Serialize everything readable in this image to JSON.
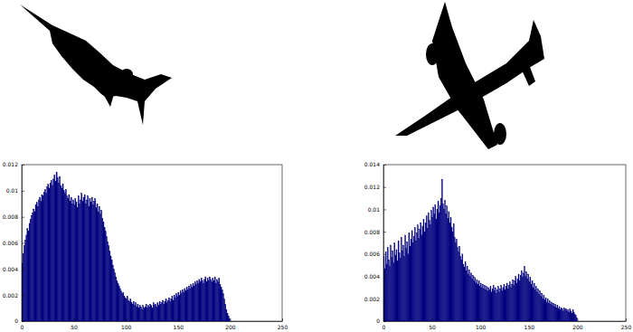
{
  "chart_data": [
    {
      "type": "histogram",
      "color": "#00007f",
      "bins": [
        0,
        1,
        2,
        3,
        4,
        5,
        6,
        7,
        8,
        9,
        10,
        11,
        12,
        13,
        14,
        15,
        16,
        17,
        18,
        19,
        20,
        21,
        22,
        23,
        24,
        25,
        26,
        27,
        28,
        29,
        30,
        31,
        32,
        33,
        34,
        35,
        36,
        37,
        38,
        39,
        40,
        41,
        42,
        43,
        44,
        45,
        46,
        47,
        48,
        49,
        50,
        51,
        52,
        53,
        54,
        55,
        56,
        57,
        58,
        59,
        60,
        61,
        62,
        63,
        64,
        65,
        66,
        67,
        68,
        69,
        70,
        71,
        72,
        73,
        74,
        75,
        76,
        77,
        78,
        79,
        80,
        81,
        82,
        83,
        84,
        85,
        86,
        87,
        88,
        89,
        90,
        91,
        92,
        93,
        94,
        95,
        96,
        97,
        98,
        99,
        100,
        101,
        102,
        103,
        104,
        105,
        106,
        107,
        108,
        109,
        110,
        111,
        112,
        113,
        114,
        115,
        116,
        117,
        118,
        119,
        120,
        121,
        122,
        123,
        124,
        125,
        126,
        127,
        128,
        129,
        130,
        131,
        132,
        133,
        134,
        135,
        136,
        137,
        138,
        139,
        140,
        141,
        142,
        143,
        144,
        145,
        146,
        147,
        148,
        149,
        150,
        151,
        152,
        153,
        154,
        155,
        156,
        157,
        158,
        159,
        160,
        161,
        162,
        163,
        164,
        165,
        166,
        167,
        168,
        169,
        170,
        171,
        172,
        173,
        174,
        175,
        176,
        177,
        178,
        179,
        180,
        181,
        182,
        183,
        184,
        185,
        186,
        187,
        188,
        189,
        190,
        191,
        192,
        193,
        194,
        195,
        196,
        197,
        198,
        199,
        200
      ],
      "values": [
        0.0044,
        0.0052,
        0.0058,
        0.0062,
        0.0066,
        0.0071,
        0.0069,
        0.0075,
        0.0078,
        0.0081,
        0.0083,
        0.0086,
        0.0084,
        0.0089,
        0.0091,
        0.0088,
        0.0093,
        0.0095,
        0.0092,
        0.0097,
        0.0096,
        0.0099,
        0.0101,
        0.0098,
        0.0103,
        0.0105,
        0.0102,
        0.0106,
        0.0108,
        0.0104,
        0.0109,
        0.0112,
        0.0107,
        0.0114,
        0.011,
        0.0106,
        0.0111,
        0.0104,
        0.0102,
        0.0105,
        0.01,
        0.0098,
        0.0101,
        0.0096,
        0.0094,
        0.0097,
        0.0092,
        0.0095,
        0.009,
        0.0093,
        0.0089,
        0.0094,
        0.0091,
        0.0087,
        0.0096,
        0.009,
        0.0093,
        0.0098,
        0.0092,
        0.0095,
        0.0097,
        0.009,
        0.0093,
        0.0096,
        0.0088,
        0.0094,
        0.0091,
        0.0095,
        0.0089,
        0.0092,
        0.0094,
        0.0087,
        0.009,
        0.0084,
        0.0088,
        0.0082,
        0.0085,
        0.0079,
        0.0076,
        0.0072,
        0.0069,
        0.0065,
        0.0061,
        0.0058,
        0.0054,
        0.005,
        0.0047,
        0.0043,
        0.004,
        0.0037,
        0.0034,
        0.0031,
        0.0029,
        0.0027,
        0.0025,
        0.0023,
        0.0021,
        0.0022,
        0.0019,
        0.0018,
        0.0017,
        0.0019,
        0.0016,
        0.0015,
        0.0017,
        0.0014,
        0.0013,
        0.0015,
        0.0012,
        0.0014,
        0.0011,
        0.0013,
        0.001,
        0.0012,
        0.0011,
        0.0009,
        0.0012,
        0.001,
        0.0011,
        0.0013,
        0.001,
        0.0012,
        0.0011,
        0.0013,
        0.0012,
        0.001,
        0.0014,
        0.0012,
        0.0013,
        0.0011,
        0.0014,
        0.0012,
        0.0015,
        0.0013,
        0.0014,
        0.0016,
        0.0013,
        0.0015,
        0.0017,
        0.0014,
        0.0016,
        0.0018,
        0.0015,
        0.0017,
        0.0019,
        0.0016,
        0.002,
        0.0018,
        0.0021,
        0.0019,
        0.0022,
        0.002,
        0.0023,
        0.0021,
        0.0024,
        0.0022,
        0.0025,
        0.0023,
        0.0026,
        0.0024,
        0.0027,
        0.0025,
        0.0028,
        0.0026,
        0.0029,
        0.0027,
        0.003,
        0.0028,
        0.0031,
        0.0029,
        0.0032,
        0.003,
        0.0033,
        0.0031,
        0.0029,
        0.0032,
        0.0034,
        0.003,
        0.0033,
        0.0031,
        0.0034,
        0.0032,
        0.003,
        0.0033,
        0.0031,
        0.0034,
        0.0029,
        0.0032,
        0.003,
        0.0033,
        0.0028,
        0.0026,
        0.0024,
        0.0021,
        0.0017,
        0.0013,
        0.0009,
        0.0006,
        0.0004,
        0.0002
      ],
      "xlim": [
        0,
        250
      ],
      "xticks": [
        0,
        50,
        100,
        150,
        200,
        250
      ],
      "ylim": [
        0,
        0.012
      ],
      "yticks": [
        0,
        0.002,
        0.004,
        0.006,
        0.008,
        0.01,
        0.012
      ]
    },
    {
      "type": "histogram",
      "color": "#00007f",
      "bins": [
        0,
        1,
        2,
        3,
        4,
        5,
        6,
        7,
        8,
        9,
        10,
        11,
        12,
        13,
        14,
        15,
        16,
        17,
        18,
        19,
        20,
        21,
        22,
        23,
        24,
        25,
        26,
        27,
        28,
        29,
        30,
        31,
        32,
        33,
        34,
        35,
        36,
        37,
        38,
        39,
        40,
        41,
        42,
        43,
        44,
        45,
        46,
        47,
        48,
        49,
        50,
        51,
        52,
        53,
        54,
        55,
        56,
        57,
        58,
        59,
        60,
        61,
        62,
        63,
        64,
        65,
        66,
        67,
        68,
        69,
        70,
        71,
        72,
        73,
        74,
        75,
        76,
        77,
        78,
        79,
        80,
        81,
        82,
        83,
        84,
        85,
        86,
        87,
        88,
        89,
        90,
        91,
        92,
        93,
        94,
        95,
        96,
        97,
        98,
        99,
        100,
        101,
        102,
        103,
        104,
        105,
        106,
        107,
        108,
        109,
        110,
        111,
        112,
        113,
        114,
        115,
        116,
        117,
        118,
        119,
        120,
        121,
        122,
        123,
        124,
        125,
        126,
        127,
        128,
        129,
        130,
        131,
        132,
        133,
        134,
        135,
        136,
        137,
        138,
        139,
        140,
        141,
        142,
        143,
        144,
        145,
        146,
        147,
        148,
        149,
        150,
        151,
        152,
        153,
        154,
        155,
        156,
        157,
        158,
        159,
        160,
        161,
        162,
        163,
        164,
        165,
        166,
        167,
        168,
        169,
        170,
        171,
        172,
        173,
        174,
        175,
        176,
        177,
        178,
        179,
        180,
        181,
        182,
        183,
        184,
        185,
        186,
        187,
        188,
        189,
        190,
        191,
        192,
        193,
        194,
        195,
        196,
        197,
        198,
        199,
        200
      ],
      "values": [
        0.0058,
        0.0047,
        0.0062,
        0.0051,
        0.0066,
        0.0055,
        0.0049,
        0.0068,
        0.0057,
        0.0063,
        0.0052,
        0.007,
        0.0059,
        0.0064,
        0.0054,
        0.0072,
        0.0061,
        0.0056,
        0.0075,
        0.0063,
        0.0068,
        0.0058,
        0.0077,
        0.0065,
        0.0071,
        0.006,
        0.0079,
        0.0067,
        0.0073,
        0.0081,
        0.007,
        0.0076,
        0.0084,
        0.0072,
        0.0079,
        0.0086,
        0.0074,
        0.0082,
        0.0088,
        0.0077,
        0.0085,
        0.0091,
        0.008,
        0.0088,
        0.0094,
        0.0083,
        0.0097,
        0.009,
        0.0086,
        0.0099,
        0.0093,
        0.0102,
        0.0096,
        0.0104,
        0.0091,
        0.01,
        0.0107,
        0.0097,
        0.0103,
        0.011,
        0.0127,
        0.0105,
        0.01,
        0.0108,
        0.0096,
        0.0103,
        0.0092,
        0.0098,
        0.0088,
        0.0093,
        0.0084,
        0.008,
        0.0087,
        0.0075,
        0.007,
        0.0073,
        0.0066,
        0.0062,
        0.0067,
        0.0058,
        0.0055,
        0.006,
        0.0051,
        0.0048,
        0.0053,
        0.0045,
        0.0049,
        0.0042,
        0.0046,
        0.004,
        0.0043,
        0.0038,
        0.0041,
        0.0036,
        0.0039,
        0.0034,
        0.0037,
        0.0033,
        0.0036,
        0.0031,
        0.0034,
        0.003,
        0.0033,
        0.0029,
        0.0032,
        0.0028,
        0.0031,
        0.0027,
        0.003,
        0.0028,
        0.0031,
        0.0026,
        0.0029,
        0.0032,
        0.0027,
        0.003,
        0.0025,
        0.0028,
        0.0031,
        0.0026,
        0.0029,
        0.0032,
        0.0027,
        0.003,
        0.0033,
        0.0028,
        0.0031,
        0.0034,
        0.0029,
        0.0032,
        0.0035,
        0.003,
        0.0033,
        0.0037,
        0.0032,
        0.0036,
        0.004,
        0.0034,
        0.0038,
        0.0042,
        0.0036,
        0.0041,
        0.0045,
        0.0039,
        0.0043,
        0.0049,
        0.004,
        0.0044,
        0.0038,
        0.0042,
        0.0035,
        0.0039,
        0.0033,
        0.0036,
        0.003,
        0.0034,
        0.0028,
        0.0031,
        0.0026,
        0.0029,
        0.0024,
        0.0027,
        0.0022,
        0.0025,
        0.002,
        0.0023,
        0.0019,
        0.0021,
        0.0017,
        0.002,
        0.0016,
        0.0018,
        0.0015,
        0.0017,
        0.0014,
        0.0016,
        0.0013,
        0.0015,
        0.0012,
        0.0014,
        0.0011,
        0.0013,
        0.001,
        0.0012,
        0.0011,
        0.0009,
        0.0012,
        0.001,
        0.0011,
        0.0009,
        0.001,
        0.0008,
        0.0011,
        0.0009,
        0.0007,
        0.001,
        0.0008,
        0.0006,
        0.0005,
        0.0003
      ],
      "xlim": [
        0,
        250
      ],
      "xticks": [
        0,
        50,
        100,
        150,
        200,
        250
      ],
      "ylim": [
        0,
        0.014
      ],
      "yticks": [
        0,
        0.002,
        0.004,
        0.006,
        0.008,
        0.01,
        0.012,
        0.014
      ]
    }
  ]
}
